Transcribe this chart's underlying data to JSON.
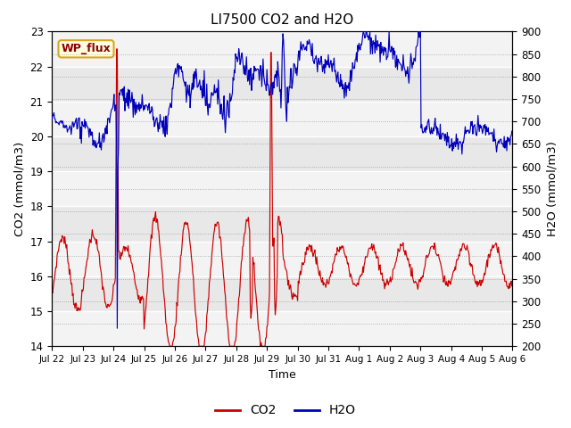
{
  "title": "LI7500 CO2 and H2O",
  "xlabel": "Time",
  "ylabel_left": "CO2 (mmol/m3)",
  "ylabel_right": "H2O (mmol/m3)",
  "annotation": "WP_flux",
  "ylim_left": [
    14.0,
    23.0
  ],
  "ylim_right": [
    200,
    900
  ],
  "yticks_left": [
    14.0,
    15.0,
    16.0,
    17.0,
    18.0,
    19.0,
    20.0,
    21.0,
    22.0,
    23.0
  ],
  "yticks_right": [
    200,
    250,
    300,
    350,
    400,
    450,
    500,
    550,
    600,
    650,
    700,
    750,
    800,
    850,
    900
  ],
  "x_tick_labels": [
    "Jul 22",
    "Jul 23",
    "Jul 24",
    "Jul 25",
    "Jul 26",
    "Jul 27",
    "Jul 28",
    "Jul 29",
    "Jul 30",
    "Jul 31",
    "Aug 1",
    "Aug 2",
    "Aug 3",
    "Aug 4",
    "Aug 5",
    "Aug 6"
  ],
  "co2_color": "#CC0000",
  "h2o_color": "#0000BB",
  "bg_color": "#E8E8E8",
  "legend_entries": [
    "CO2",
    "H2O"
  ],
  "figsize": [
    6.4,
    4.8
  ],
  "dpi": 100
}
